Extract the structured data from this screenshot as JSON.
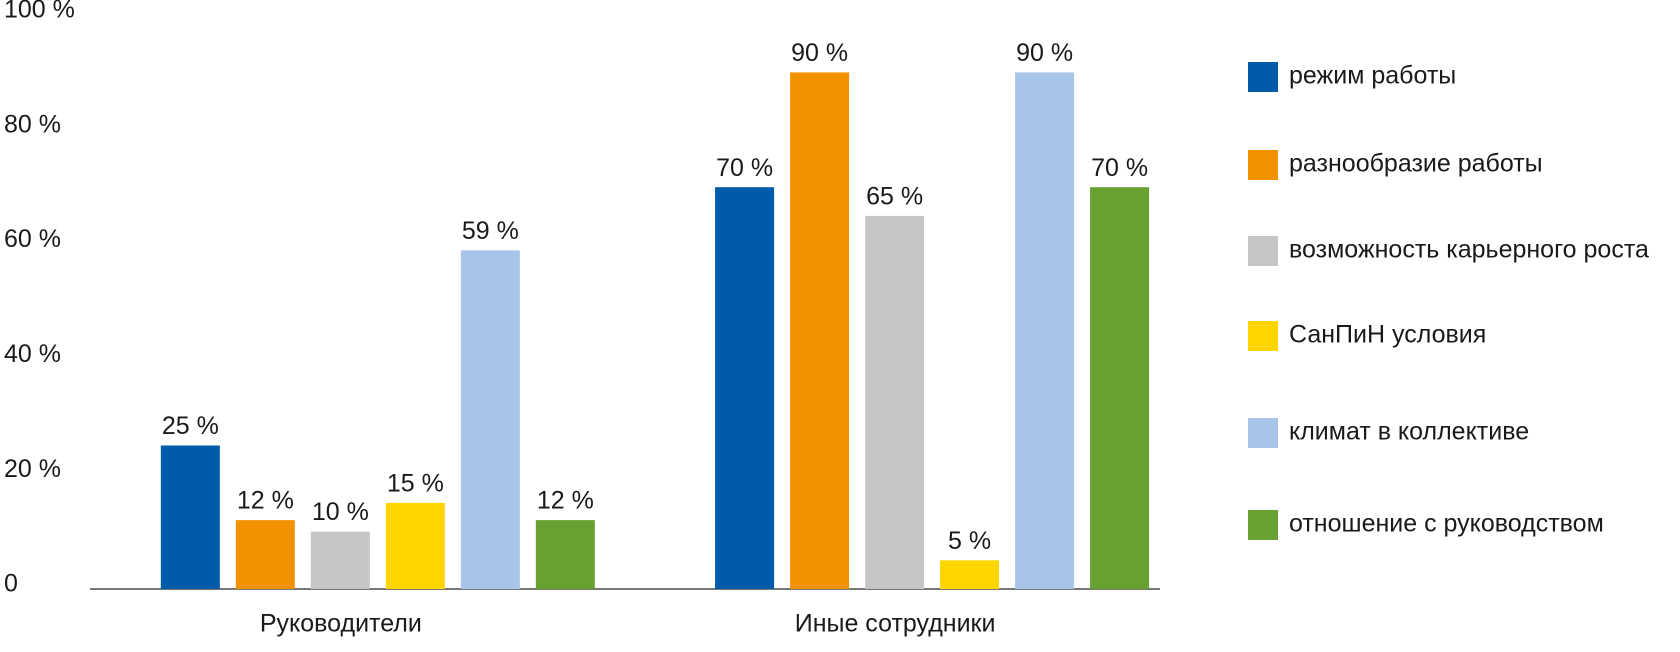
{
  "chart_data": {
    "type": "bar",
    "categories": [
      "Руководители",
      "Иные сотрудники"
    ],
    "series": [
      {
        "name": "режим работы",
        "color": "#005bab",
        "values": [
          25,
          70
        ],
        "value_labels": [
          "25 %",
          "70 %"
        ]
      },
      {
        "name": "разнообразие работы",
        "color": "#f39200",
        "values": [
          12,
          90
        ],
        "value_labels": [
          "12 %",
          "90 %"
        ]
      },
      {
        "name": "возможность карьерного роста",
        "color": "#c6c6c6",
        "values": [
          10,
          65
        ],
        "value_labels": [
          "10 %",
          "65 %"
        ]
      },
      {
        "name": "СанПиН условия",
        "color": "#ffd500",
        "values": [
          15,
          5
        ],
        "value_labels": [
          "15 %",
          "5 %"
        ]
      },
      {
        "name": "климат в коллективе",
        "color": "#a6c5e9",
        "values": [
          59,
          90
        ],
        "value_labels": [
          "59 %",
          "90 %"
        ]
      },
      {
        "name": "отношение с руководством",
        "color": "#69a032",
        "values": [
          12,
          70
        ],
        "value_labels": [
          "12 %",
          "70 %"
        ]
      }
    ],
    "ylim": [
      0,
      100
    ],
    "yticks": [
      0,
      {
        "value": 20,
        "label": "20 %"
      },
      {
        "value": 40,
        "label": "40 %"
      },
      {
        "value": 60,
        "label": "60 %"
      },
      {
        "value": 80,
        "label": "80 %"
      },
      {
        "value": 100,
        "label": "100 %"
      }
    ],
    "grid": false,
    "legend": "right"
  }
}
